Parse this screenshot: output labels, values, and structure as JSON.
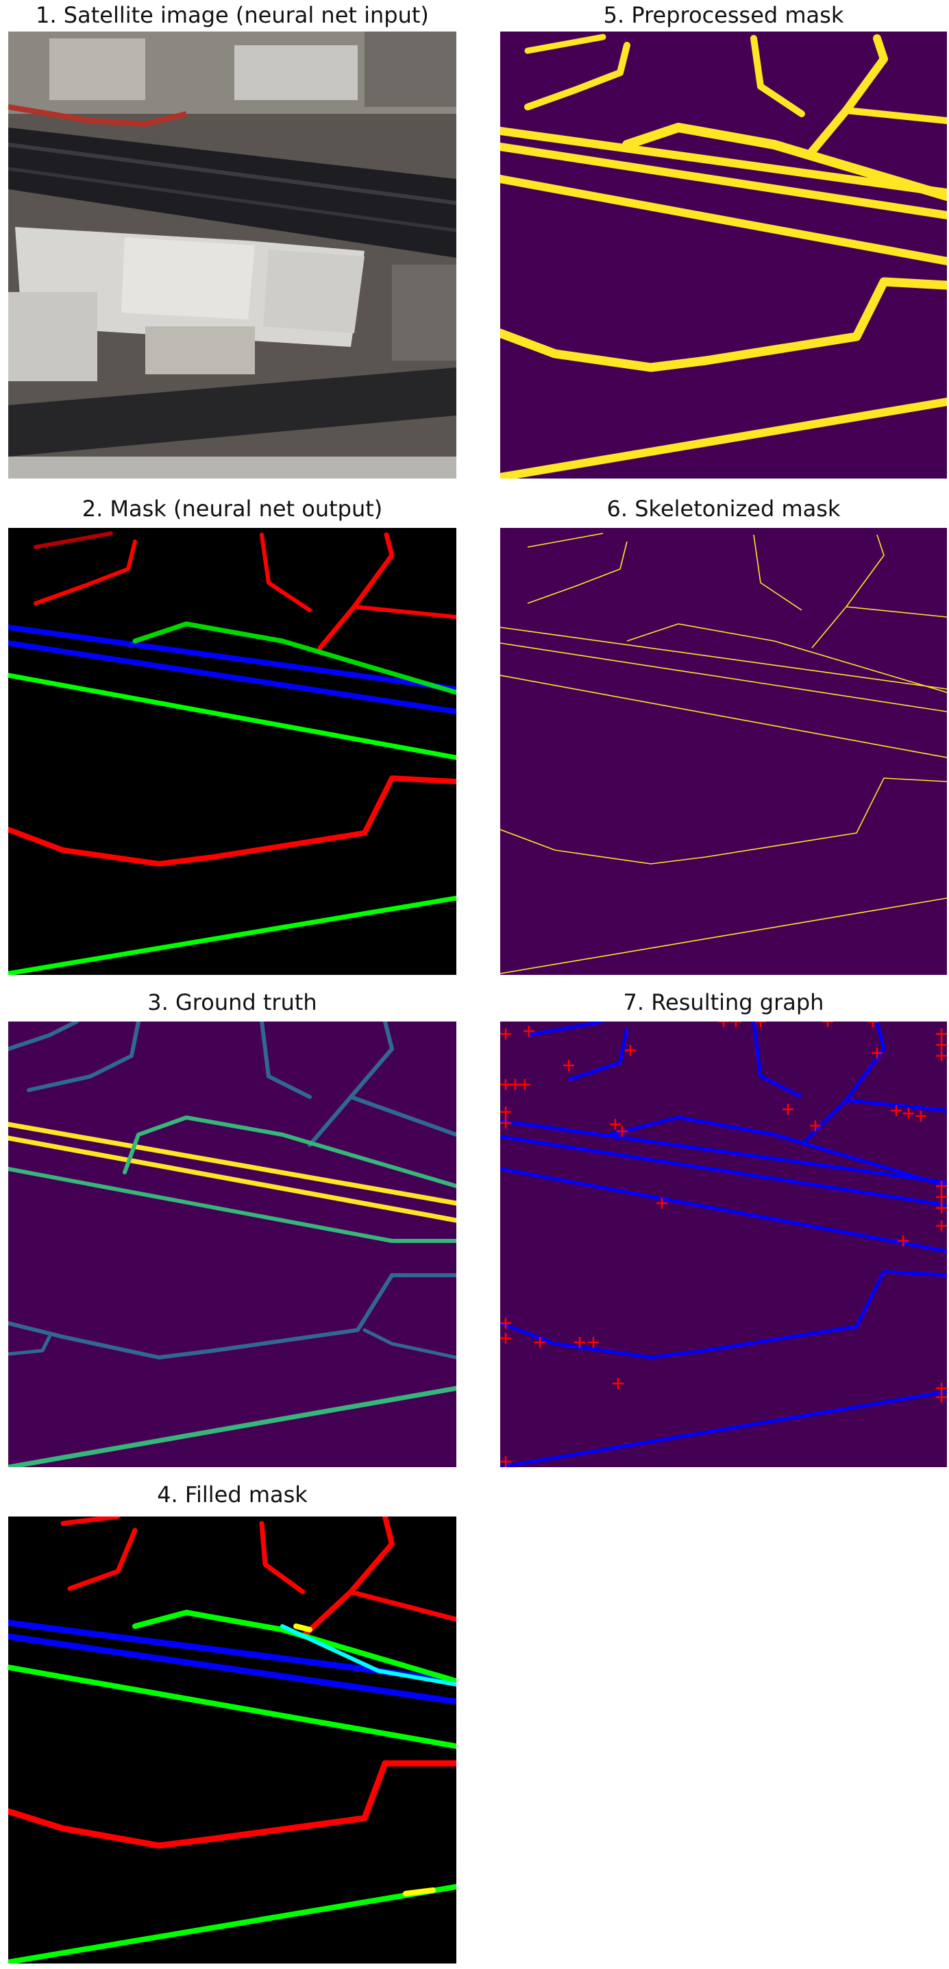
{
  "panels": [
    {
      "id": "p1",
      "title": "1. Satellite image (neural net input)"
    },
    {
      "id": "p2",
      "title": "2. Mask (neural net output)"
    },
    {
      "id": "p3",
      "title": "3. Ground truth"
    },
    {
      "id": "p4",
      "title": "4. Filled mask"
    },
    {
      "id": "p5",
      "title": "5. Preprocessed mask"
    },
    {
      "id": "p6",
      "title": "6. Skeletonized mask"
    },
    {
      "id": "p7",
      "title": "7. Resulting graph"
    }
  ],
  "colors": {
    "viridis_dark": "#440154",
    "viridis_yellow": "#fde725",
    "viridis_teal": "#31688e",
    "viridis_green": "#35b779",
    "mask_red": "#ff0000",
    "mask_green": "#00ff00",
    "mask_blue": "#0000ff",
    "mask_cyan": "#00ffff",
    "mask_yellow": "#ffff00",
    "graph_blue": "#0000ff",
    "graph_node": "#ff0000"
  }
}
